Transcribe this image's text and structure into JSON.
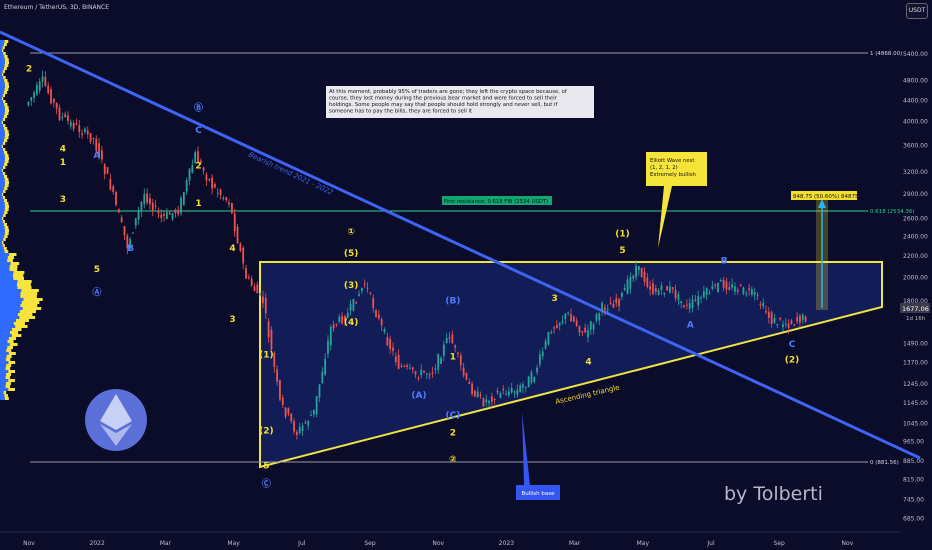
{
  "header": {
    "title": "Ethereum / TetherUS, 3D, BINANCE",
    "currency_badge": "USDT"
  },
  "colors": {
    "background": "#0b0b2a",
    "bull": "#26a69a",
    "bear": "#ef5350",
    "trendline": "#3e64f5",
    "triangle": "#f0e442",
    "fib": "#2bd48f",
    "volume_profile_a": "#2f6bff",
    "volume_profile_b": "#f6e33b"
  },
  "chart_data": {
    "type": "candlestick",
    "title": "",
    "xlabel": "",
    "ylabel": "",
    "y_scale": "log",
    "ylim": [
      645,
      6400
    ],
    "x_ticks": [
      "Nov",
      "2022",
      "Mar",
      "May",
      "Jul",
      "Sep",
      "Nov",
      "2023",
      "Mar",
      "May",
      "Jul",
      "Sep",
      "Nov"
    ],
    "y_ticks": [
      "5400.00",
      "4800.00",
      "4400.00",
      "4000.00",
      "3600.00",
      "3200.00",
      "2900.00",
      "2600.00",
      "2400.00",
      "2200.00",
      "2000.00",
      "1800.00",
      "1490.00",
      "1370.00",
      "1245.00",
      "1145.00",
      "1045.00",
      "965.00",
      "885.00",
      "815.00",
      "745.00",
      "685.00"
    ],
    "current_price_label": "1677.06",
    "countdown_label": "1d 16h",
    "price_path": [
      {
        "x": "Nov 2021",
        "y": 4300
      },
      {
        "x": "Nov 2021",
        "y": 4800
      },
      {
        "x": "Dec 2021",
        "y": 4100
      },
      {
        "x": "Dec 2021",
        "y": 3900
      },
      {
        "x": "Jan 2022",
        "y": 3700
      },
      {
        "x": "Jan 2022",
        "y": 3000
      },
      {
        "x": "Feb 2022",
        "y": 2300
      },
      {
        "x": "Feb 2022",
        "y": 2900
      },
      {
        "x": "Mar 2022",
        "y": 2600
      },
      {
        "x": "Mar 2022",
        "y": 2700
      },
      {
        "x": "Apr 2022",
        "y": 3450
      },
      {
        "x": "Apr 2022",
        "y": 3000
      },
      {
        "x": "May 2022",
        "y": 2800
      },
      {
        "x": "May 2022",
        "y": 2000
      },
      {
        "x": "Jun 2022",
        "y": 1800
      },
      {
        "x": "Jun 2022",
        "y": 1150
      },
      {
        "x": "Jun 2022",
        "y": 1000
      },
      {
        "x": "Jul 2022",
        "y": 1100
      },
      {
        "x": "Jul 2022",
        "y": 1600
      },
      {
        "x": "Aug 2022",
        "y": 1700
      },
      {
        "x": "Aug 2022",
        "y": 1950
      },
      {
        "x": "Sep 2022",
        "y": 1600
      },
      {
        "x": "Sep 2022",
        "y": 1350
      },
      {
        "x": "Oct 2022",
        "y": 1300
      },
      {
        "x": "Oct 2022",
        "y": 1320
      },
      {
        "x": "Nov 2022",
        "y": 1550
      },
      {
        "x": "Nov 2022",
        "y": 1250
      },
      {
        "x": "Dec 2022",
        "y": 1150
      },
      {
        "x": "Dec 2022",
        "y": 1200
      },
      {
        "x": "Jan 2023",
        "y": 1210
      },
      {
        "x": "Jan 2023",
        "y": 1300
      },
      {
        "x": "Feb 2023",
        "y": 1600
      },
      {
        "x": "Feb 2023",
        "y": 1700
      },
      {
        "x": "Mar 2023",
        "y": 1550
      },
      {
        "x": "Mar 2023",
        "y": 1750
      },
      {
        "x": "Apr 2023",
        "y": 1800
      },
      {
        "x": "Apr 2023",
        "y": 2100
      },
      {
        "x": "May 2023",
        "y": 1880
      },
      {
        "x": "May 2023",
        "y": 1900
      },
      {
        "x": "Jun 2023",
        "y": 1750
      },
      {
        "x": "Jun 2023",
        "y": 1850
      },
      {
        "x": "Jul 2023",
        "y": 1950
      },
      {
        "x": "Jul 2023",
        "y": 1900
      },
      {
        "x": "Aug 2023",
        "y": 1850
      },
      {
        "x": "Aug 2023",
        "y": 1650
      },
      {
        "x": "Sep 2023",
        "y": 1630
      },
      {
        "x": "Sep 2023",
        "y": 1677
      }
    ],
    "horizontal_levels": [
      {
        "label": "1 (4868.00)",
        "value": 4868
      },
      {
        "label": "0.618 (2534.36)",
        "value": 2534.36
      },
      {
        "label": "0 (881.56)",
        "value": 881.56
      }
    ],
    "fib_label": "First resistance: 0.618 FIB (2534 USDT)",
    "target_label": "848.75 (50.60%) 84875",
    "annotations": {
      "top_note": "At this moment, probably 95% of traders are gone; they left the crypto space because, of course, they lost money during the previous bear market and were forced to sell their holdings. Some people may say that people should hold strongly and never sell, but if someone has to pay the bills, they are forced to sell it",
      "elliott_note": "Elliott Wave nest (1, 2, 1, 2) Extremely bullish",
      "trend_label": "Bearish trend 2021 - 2022",
      "triangle_label": "Ascending triangle",
      "base_label": "Bullish base",
      "watermark": "by Tolberti"
    },
    "wave_labels": [
      {
        "text": "2",
        "x": "Nov 2021",
        "y": 5000,
        "color": "yellow"
      },
      {
        "text": "1",
        "x": "Dec 2021",
        "y": 3300,
        "color": "yellow"
      },
      {
        "text": "4",
        "x": "Dec 2021",
        "y": 3500,
        "color": "yellow"
      },
      {
        "text": "3",
        "x": "Dec 2021",
        "y": 2800,
        "color": "yellow"
      },
      {
        "text": "5",
        "x": "Jan 2022",
        "y": 2050,
        "color": "yellow"
      },
      {
        "text": "A",
        "x": "Jan 2022",
        "y": 3400,
        "color": "blue"
      },
      {
        "text": "B",
        "x": "Feb 2022",
        "y": 2250,
        "color": "blue"
      },
      {
        "text": "Ⓐ",
        "x": "Jan 2022",
        "y": 1850,
        "color": "blue"
      },
      {
        "text": "Ⓑ",
        "x": "Apr 2022",
        "y": 4200,
        "color": "blue"
      },
      {
        "text": "C",
        "x": "Apr 2022",
        "y": 3800,
        "color": "blue"
      },
      {
        "text": "2",
        "x": "Apr 2022",
        "y": 3250,
        "color": "yellow"
      },
      {
        "text": "1",
        "x": "Apr 2022",
        "y": 2750,
        "color": "yellow"
      },
      {
        "text": "4",
        "x": "May 2022",
        "y": 2250,
        "color": "yellow"
      },
      {
        "text": "3",
        "x": "May 2022",
        "y": 1640,
        "color": "yellow"
      },
      {
        "text": "(1)",
        "x": "Jun 2022",
        "y": 1400,
        "color": "yellow"
      },
      {
        "text": "(2)",
        "x": "Jun 2022",
        "y": 1000,
        "color": "yellow"
      },
      {
        "text": "5",
        "x": "Jun 2022",
        "y": 855,
        "color": "yellow"
      },
      {
        "text": "Ⓒ",
        "x": "Jun 2022",
        "y": 790,
        "color": "blue"
      },
      {
        "text": "(3)",
        "x": "Aug 2022",
        "y": 1910,
        "color": "yellow"
      },
      {
        "text": "(4)",
        "x": "Aug 2022",
        "y": 1620,
        "color": "yellow"
      },
      {
        "text": "①",
        "x": "Aug 2022",
        "y": 2420,
        "color": "yellow"
      },
      {
        "text": "(5)",
        "x": "Aug 2022",
        "y": 2200,
        "color": "yellow"
      },
      {
        "text": "(A)",
        "x": "Oct 2022",
        "y": 1170,
        "color": "blue"
      },
      {
        "text": "(B)",
        "x": "Nov 2022",
        "y": 1780,
        "color": "blue"
      },
      {
        "text": "1",
        "x": "Nov 2022",
        "y": 1390,
        "color": "yellow"
      },
      {
        "text": "(C)",
        "x": "Nov 2022",
        "y": 1070,
        "color": "blue"
      },
      {
        "text": "2",
        "x": "Nov 2022",
        "y": 990,
        "color": "yellow"
      },
      {
        "text": "②",
        "x": "Nov 2022",
        "y": 880,
        "color": "yellow"
      },
      {
        "text": "3",
        "x": "Feb 2023",
        "y": 1800,
        "color": "yellow"
      },
      {
        "text": "4",
        "x": "Mar 2023",
        "y": 1360,
        "color": "yellow"
      },
      {
        "text": "(1)",
        "x": "Apr 2023",
        "y": 2400,
        "color": "yellow"
      },
      {
        "text": "5",
        "x": "Apr 2023",
        "y": 2230,
        "color": "yellow"
      },
      {
        "text": "B",
        "x": "Jul 2023",
        "y": 2130,
        "color": "blue"
      },
      {
        "text": "A",
        "x": "Jun 2023",
        "y": 1600,
        "color": "blue"
      },
      {
        "text": "C",
        "x": "Sep 2023",
        "y": 1470,
        "color": "blue"
      },
      {
        "text": "(2)",
        "x": "Sep 2023",
        "y": 1370,
        "color": "yellow"
      }
    ]
  }
}
